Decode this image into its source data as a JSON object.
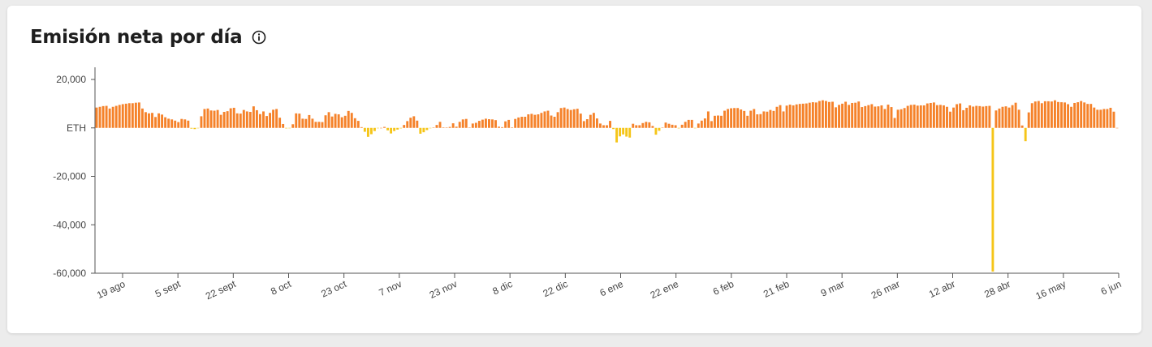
{
  "card": {
    "title": "Emisión neta por día",
    "info_icon": "info-circle-icon"
  },
  "colors": {
    "positive": "#f5822a",
    "negative": "#f5c518",
    "axis": "#555555"
  },
  "chart_data": {
    "type": "bar",
    "title": "Emisión neta por día",
    "xlabel": "",
    "ylabel": "",
    "y_unit_label": "ETH",
    "ylim": [
      -60000,
      20000
    ],
    "y_ticks": [
      20000,
      0,
      -20000,
      -40000,
      -60000
    ],
    "y_tick_labels": [
      "20,000",
      "ETH",
      "-20,000",
      "-40,000",
      "-60,000"
    ],
    "x_tick_labels": [
      "19 ago",
      "5 sept",
      "22 sept",
      "8 oct",
      "23 oct",
      "7 nov",
      "23 nov",
      "8 dic",
      "22 dic",
      "6 ene",
      "22 ene",
      "6 feb",
      "21 feb",
      "9 mar",
      "26 mar",
      "12 abr",
      "28 abr",
      "16 may",
      "6 jun"
    ],
    "grid": false,
    "legend": "none",
    "values": [
      8400,
      8700,
      9000,
      9100,
      8000,
      8700,
      9100,
      9500,
      9800,
      10000,
      10200,
      10200,
      10400,
      10500,
      8000,
      6500,
      6000,
      6200,
      4500,
      6000,
      5500,
      4400,
      3800,
      3500,
      3000,
      2400,
      3700,
      3500,
      3000,
      -300,
      -500,
      -100,
      4800,
      7800,
      8000,
      7200,
      7100,
      7400,
      5400,
      6600,
      6900,
      8100,
      8300,
      6000,
      5900,
      7400,
      6800,
      6600,
      8900,
      7300,
      5700,
      6800,
      4900,
      6200,
      7500,
      7800,
      4200,
      1600,
      -200,
      -100,
      1500,
      6000,
      5900,
      3800,
      3700,
      5300,
      3800,
      2500,
      2500,
      2400,
      5200,
      6500,
      4700,
      5800,
      5600,
      4400,
      5000,
      7000,
      6200,
      4000,
      2900,
      300,
      -1600,
      -3700,
      -2600,
      -1300,
      -100,
      0,
      400,
      -1000,
      -2300,
      -1300,
      -700,
      -200,
      1200,
      2800,
      4200,
      4800,
      3000,
      -2400,
      -1800,
      -900,
      -100,
      100,
      1200,
      2500,
      200,
      100,
      400,
      1900,
      500,
      2500,
      3500,
      3700,
      100,
      1800,
      2100,
      2900,
      3400,
      3800,
      3600,
      3500,
      3200,
      500,
      300,
      2700,
      3300,
      200,
      3700,
      4300,
      4600,
      4600,
      5600,
      5800,
      5400,
      5600,
      6200,
      6800,
      7100,
      5100,
      4600,
      6500,
      8200,
      8400,
      7800,
      7400,
      7700,
      7900,
      5900,
      2800,
      3600,
      5400,
      6200,
      3900,
      1800,
      1100,
      1100,
      2900,
      -500,
      -6000,
      -3500,
      -2700,
      -3600,
      -4000,
      1700,
      1100,
      1100,
      2000,
      2500,
      2300,
      800,
      -2800,
      -1200,
      100,
      2200,
      1700,
      1300,
      1100,
      -200,
      1300,
      2500,
      3300,
      3300,
      -100,
      1800,
      3000,
      3900,
      6800,
      2800,
      5000,
      5100,
      5000,
      7100,
      7800,
      8100,
      8200,
      8200,
      7600,
      7000,
      5000,
      7100,
      7800,
      5600,
      5700,
      6800,
      6700,
      7400,
      7000,
      8700,
      9400,
      6800,
      9200,
      9600,
      9300,
      9700,
      9900,
      10000,
      10100,
      10400,
      10600,
      10500,
      11100,
      11400,
      11100,
      10700,
      10800,
      8500,
      9500,
      10000,
      10800,
      9500,
      10300,
      10400,
      10900,
      8600,
      9000,
      9400,
      9800,
      8800,
      8900,
      9300,
      7800,
      9600,
      8600,
      4100,
      7500,
      7700,
      8200,
      9100,
      9500,
      9600,
      9200,
      9300,
      9300,
      10100,
      10300,
      10500,
      9400,
      9500,
      9300,
      8700,
      6700,
      8400,
      9800,
      10100,
      7300,
      8300,
      9300,
      8800,
      9100,
      9000,
      8800,
      9000,
      9100,
      -59300,
      7200,
      8000,
      8700,
      8900,
      8400,
      9400,
      10400,
      7500,
      1000,
      -5500,
      6400,
      10200,
      10900,
      11100,
      10200,
      11000,
      11000,
      10900,
      11400,
      10700,
      10600,
      10500,
      9800,
      8700,
      10300,
      10600,
      11100,
      10500,
      9900,
      9900,
      8400,
      7500,
      7500,
      7800,
      7800,
      8300,
      6700,
      0
    ]
  }
}
